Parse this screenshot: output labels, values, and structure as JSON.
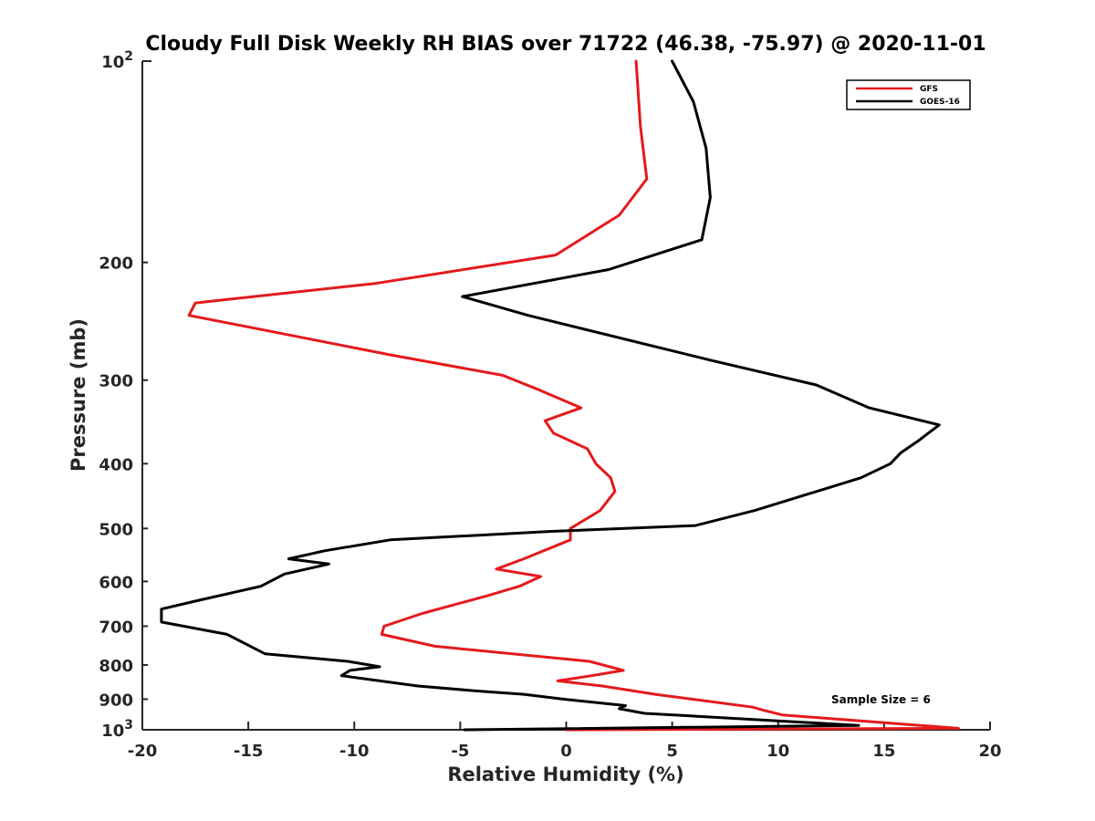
{
  "chart_data": {
    "type": "line",
    "title": "Cloudy Full Disk Weekly RH BIAS over 71722 (46.38, -75.97) @ 2020-11-01",
    "xlabel": "Relative Humidity (%)",
    "ylabel": "Pressure (mb)",
    "xlim": [
      -20,
      20
    ],
    "ylim": [
      100,
      1000
    ],
    "yscale": "log",
    "yreversed": true,
    "grid": false,
    "x_ticks": [
      -20,
      -15,
      -10,
      -5,
      0,
      5,
      10,
      15,
      20
    ],
    "x_tick_labels": [
      "-20",
      "-15",
      "-10",
      "-5",
      "0",
      "5",
      "10",
      "15",
      "20"
    ],
    "y_ticks": [
      100,
      200,
      300,
      400,
      500,
      600,
      700,
      800,
      900,
      1000
    ],
    "y_tick_labels": [
      {
        "base": "10",
        "exp": "2"
      },
      {
        "base": "200",
        "exp": ""
      },
      {
        "base": "300",
        "exp": ""
      },
      {
        "base": "400",
        "exp": ""
      },
      {
        "base": "500",
        "exp": ""
      },
      {
        "base": "600",
        "exp": ""
      },
      {
        "base": "700",
        "exp": ""
      },
      {
        "base": "800",
        "exp": ""
      },
      {
        "base": "900",
        "exp": ""
      },
      {
        "base": "10",
        "exp": "3"
      }
    ],
    "legend_placement": "top-right",
    "annotation": "Sample Size = 6",
    "series": [
      {
        "name": "GFS",
        "color": "#e41a1c",
        "points": [
          [
            3.3,
            100
          ],
          [
            3.5,
            125
          ],
          [
            3.8,
            150
          ],
          [
            2.5,
            170
          ],
          [
            -0.5,
            195
          ],
          [
            -9,
            215
          ],
          [
            -17.5,
            230
          ],
          [
            -17.8,
            240
          ],
          [
            -8.3,
            275
          ],
          [
            -3,
            295
          ],
          [
            -1.3,
            310
          ],
          [
            0.7,
            330
          ],
          [
            -1,
            345
          ],
          [
            -0.6,
            360
          ],
          [
            1,
            380
          ],
          [
            1.4,
            400
          ],
          [
            2.1,
            420
          ],
          [
            2.3,
            440
          ],
          [
            1.6,
            470
          ],
          [
            0.2,
            500
          ],
          [
            0.2,
            520
          ],
          [
            -2,
            555
          ],
          [
            -3.3,
            575
          ],
          [
            -1.2,
            590
          ],
          [
            -2.2,
            610
          ],
          [
            -3.7,
            630
          ],
          [
            -6.8,
            670
          ],
          [
            -8.6,
            700
          ],
          [
            -8.7,
            720
          ],
          [
            -6.2,
            750
          ],
          [
            1.1,
            790
          ],
          [
            2.7,
            815
          ],
          [
            1.2,
            830
          ],
          [
            -0.4,
            845
          ],
          [
            1.7,
            860
          ],
          [
            4.2,
            885
          ],
          [
            8.8,
            925
          ],
          [
            9.3,
            935
          ],
          [
            10.2,
            950
          ],
          [
            14.8,
            975
          ],
          [
            18.5,
            995
          ],
          [
            0,
            1000
          ]
        ]
      },
      {
        "name": "GOES-16",
        "color": "#000000",
        "points": [
          [
            5,
            100
          ],
          [
            6,
            115
          ],
          [
            6.6,
            135
          ],
          [
            6.8,
            160
          ],
          [
            6.4,
            185
          ],
          [
            2,
            205
          ],
          [
            -4.9,
            225
          ],
          [
            -1.8,
            240
          ],
          [
            6.8,
            280
          ],
          [
            11.8,
            305
          ],
          [
            14.3,
            330
          ],
          [
            17.6,
            350
          ],
          [
            16.6,
            370
          ],
          [
            15.8,
            385
          ],
          [
            15.3,
            400
          ],
          [
            13.9,
            420
          ],
          [
            8.9,
            470
          ],
          [
            6.1,
            495
          ],
          [
            -0.7,
            505
          ],
          [
            -8.3,
            520
          ],
          [
            -11.4,
            540
          ],
          [
            -13.1,
            555
          ],
          [
            -11.2,
            565
          ],
          [
            -13.3,
            585
          ],
          [
            -14.4,
            610
          ],
          [
            -17.3,
            640
          ],
          [
            -19.1,
            660
          ],
          [
            -19.1,
            690
          ],
          [
            -16,
            720
          ],
          [
            -14.2,
            770
          ],
          [
            -10.3,
            790
          ],
          [
            -8.8,
            805
          ],
          [
            -10.2,
            815
          ],
          [
            -10.6,
            830
          ],
          [
            -7,
            860
          ],
          [
            -4.2,
            875
          ],
          [
            -2,
            885
          ],
          [
            -0.1,
            900
          ],
          [
            2.8,
            920
          ],
          [
            2.5,
            930
          ],
          [
            3.7,
            945
          ],
          [
            13.8,
            985
          ],
          [
            -4.8,
            1000
          ]
        ]
      }
    ]
  }
}
